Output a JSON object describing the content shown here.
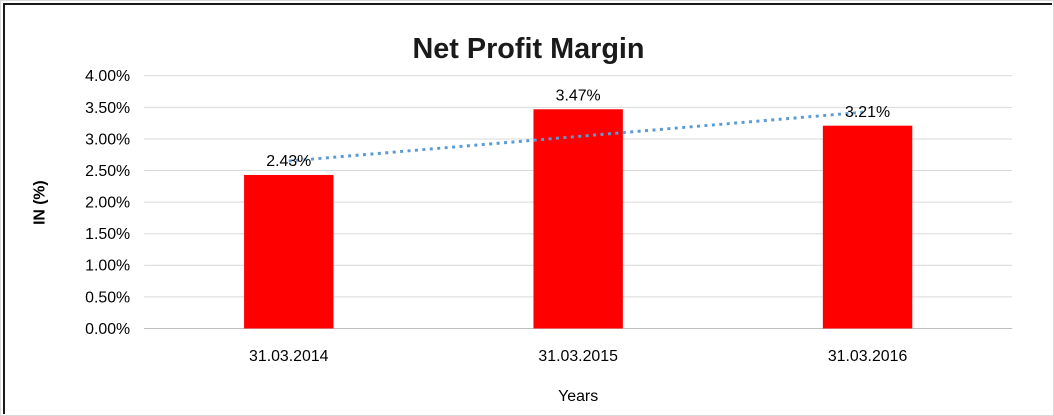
{
  "frame": {
    "background": "#ffffff",
    "border_dark": "#1a1a1a",
    "border_light": "#d9d9d9"
  },
  "chart_data": {
    "type": "bar",
    "title": "Net Profit Margin",
    "xlabel": "Years",
    "ylabel": "IN (%)",
    "categories": [
      "31.03.2014",
      "31.03.2015",
      "31.03.2016"
    ],
    "values": [
      2.43,
      3.47,
      3.21
    ],
    "data_labels": [
      "2.43%",
      "3.47%",
      "3.21%"
    ],
    "ylim": [
      0,
      4
    ],
    "ytick_step": 0.5,
    "ytick_labels": [
      "0.00%",
      "0.50%",
      "1.00%",
      "1.50%",
      "2.00%",
      "2.50%",
      "3.00%",
      "3.50%",
      "4.00%"
    ],
    "grid": true,
    "legend": "none",
    "bar_color": "#ff0000",
    "gridline_color": "#d9d9d9",
    "baseline_color": "#bfbfbf",
    "text_color": "#000000",
    "trendline": {
      "type": "linear",
      "style": "dotted",
      "color": "#5b9bd5",
      "endpoints_pct": [
        2.65,
        3.43
      ]
    }
  }
}
